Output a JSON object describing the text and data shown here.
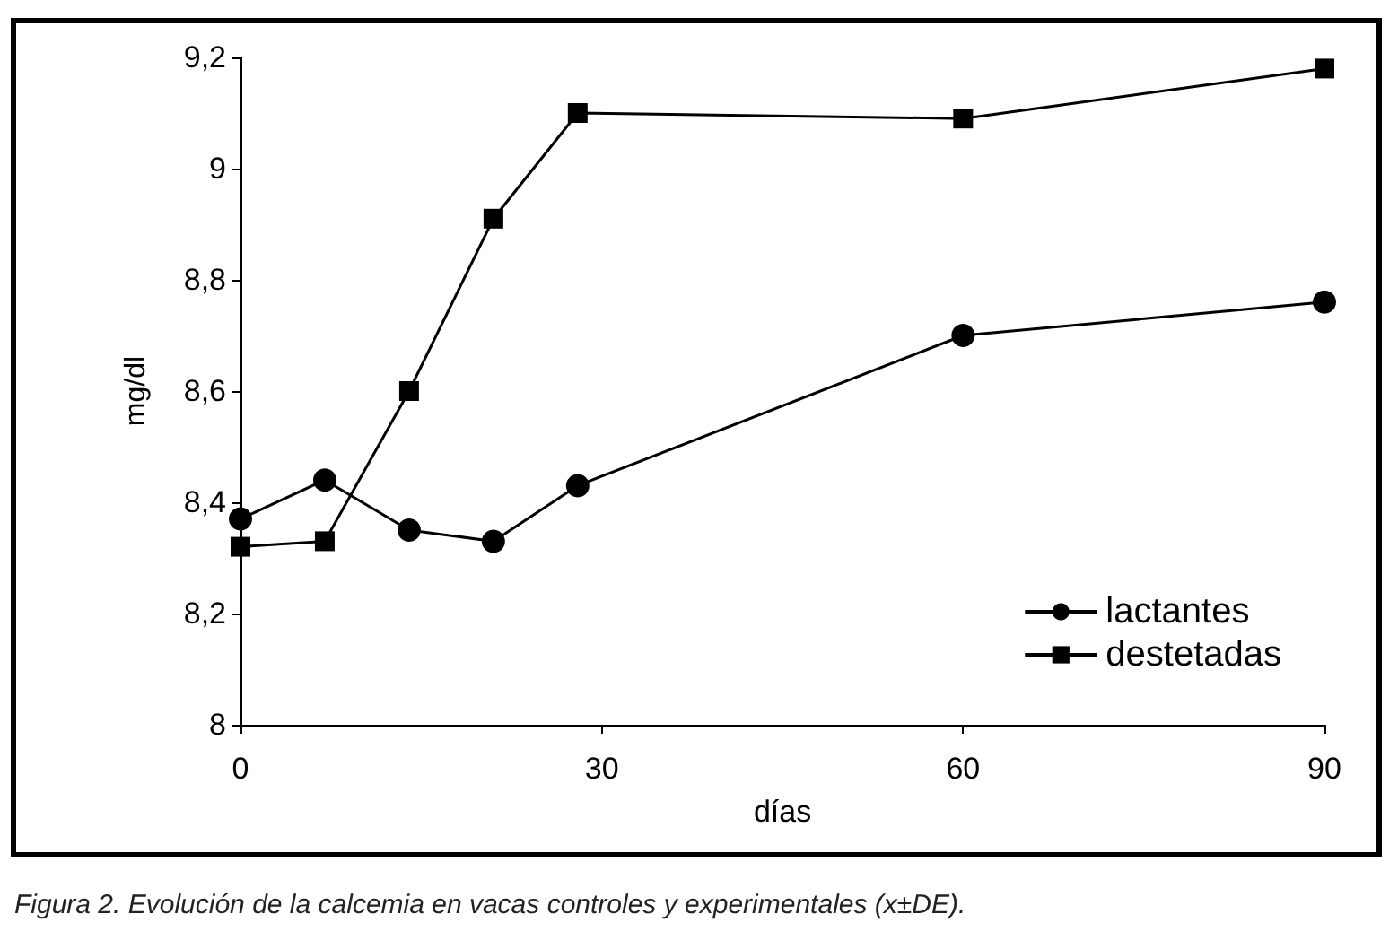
{
  "chart_data": {
    "type": "line",
    "xlabel": "días",
    "ylabel": "mg/dl",
    "annotations": [
      "Figura 2. Evolución de la calcemia en vacas controles y experimentales (x±DE)."
    ],
    "x": [
      0,
      7,
      14,
      21,
      28,
      60,
      90
    ],
    "series": [
      {
        "name": "lactantes",
        "color": "#000000",
        "marker": "circle",
        "values": [
          8.37,
          8.44,
          8.35,
          8.33,
          8.43,
          8.7,
          8.76
        ]
      },
      {
        "name": "destetadas",
        "color": "#000000",
        "marker": "square",
        "values": [
          8.32,
          8.33,
          8.6,
          8.91,
          9.1,
          9.09,
          9.18
        ]
      }
    ],
    "xlim": [
      0,
      90
    ],
    "xticks": [
      0,
      30,
      60,
      90
    ],
    "ylim": [
      8,
      9.2
    ],
    "yticks": [
      8,
      {
        "value": 8.2,
        "label": "8,2"
      },
      {
        "value": 8.4,
        "label": "8,4"
      },
      {
        "value": 8.6,
        "label": "8,6"
      },
      {
        "value": 8.8,
        "label": "8,8"
      },
      9,
      {
        "value": 9.2,
        "label": "9,2"
      }
    ],
    "grid": false,
    "legend": "bottom right",
    "line_style": "solid"
  }
}
